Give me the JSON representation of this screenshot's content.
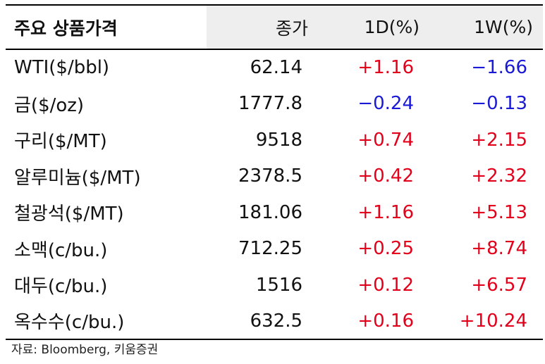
{
  "header": {
    "name": "주요 상품가격",
    "close": "종가",
    "d1": "1D(%)",
    "w1": "1W(%)"
  },
  "rows": [
    {
      "name": "WTI($/bbl)",
      "close": "62.14",
      "d1": "+1.16",
      "w1": "-1.66"
    },
    {
      "name": "금($/oz)",
      "close": "1777.8",
      "d1": "-0.24",
      "w1": "-0.13"
    },
    {
      "name": "구리($/MT)",
      "close": "9518",
      "d1": "+0.74",
      "w1": "+2.15"
    },
    {
      "name": "알루미늄($/MT)",
      "close": "2378.5",
      "d1": "+0.42",
      "w1": "+2.32"
    },
    {
      "name": "철광석($/MT)",
      "close": "181.06",
      "d1": "+1.16",
      "w1": "+5.13"
    },
    {
      "name": "소맥(c/bu.)",
      "close": "712.25",
      "d1": "+0.25",
      "w1": "+8.74"
    },
    {
      "name": "대두(c/bu.)",
      "close": "1516",
      "d1": "+0.12",
      "w1": "+6.57"
    },
    {
      "name": "옥수수(c/bu.)",
      "close": "632.5",
      "d1": "+0.16",
      "w1": "+10.24"
    }
  ],
  "source": "자료: Bloomberg, 키움증권",
  "colors": {
    "positive": "#e3001b",
    "negative": "#1a1ad6",
    "header_bg": "#eeeeee"
  }
}
